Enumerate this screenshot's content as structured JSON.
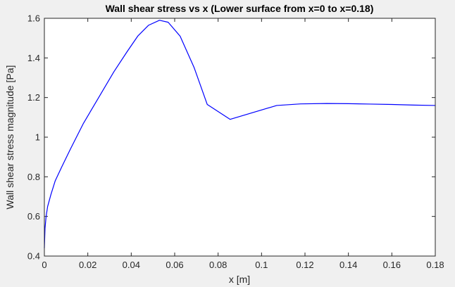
{
  "chart_data": {
    "type": "line",
    "title": "Wall shear stress vs x (Lower surface from x=0 to x=0.18)",
    "xlabel": "x [m]",
    "ylabel": "Wall shear stress magnitude [Pa]",
    "xlim": [
      0,
      0.18
    ],
    "ylim": [
      0.4,
      1.6
    ],
    "xticks": [
      0,
      0.02,
      0.04,
      0.06,
      0.08,
      0.1,
      0.12,
      0.14,
      0.16,
      0.18
    ],
    "xtick_labels": [
      "0",
      "0.02",
      "0.04",
      "0.06",
      "0.08",
      "0.1",
      "0.12",
      "0.14",
      "0.16",
      "0.18"
    ],
    "yticks": [
      0.4,
      0.6,
      0.8,
      1.0,
      1.2,
      1.4,
      1.6
    ],
    "ytick_labels": [
      "0.4",
      "0.6",
      "0.8",
      "1",
      "1.2",
      "1.4",
      "1.6"
    ],
    "grid": false,
    "series": [
      {
        "name": "Wall shear stress",
        "color": "#0000ff",
        "x": [
          0,
          0.0003,
          0.0008,
          0.0015,
          0.003,
          0.005,
          0.008,
          0.012,
          0.018,
          0.025,
          0.032,
          0.038,
          0.043,
          0.048,
          0.053,
          0.057,
          0.0625,
          0.069,
          0.075,
          0.0855,
          0.107,
          0.118,
          0.13,
          0.14,
          0.15,
          0.16,
          0.17,
          0.18
        ],
        "y": [
          0.44,
          0.54,
          0.6,
          0.65,
          0.71,
          0.78,
          0.85,
          0.94,
          1.07,
          1.2,
          1.33,
          1.43,
          1.51,
          1.565,
          1.59,
          1.58,
          1.51,
          1.35,
          1.165,
          1.09,
          1.16,
          1.168,
          1.17,
          1.169,
          1.167,
          1.165,
          1.162,
          1.16
        ]
      }
    ]
  }
}
